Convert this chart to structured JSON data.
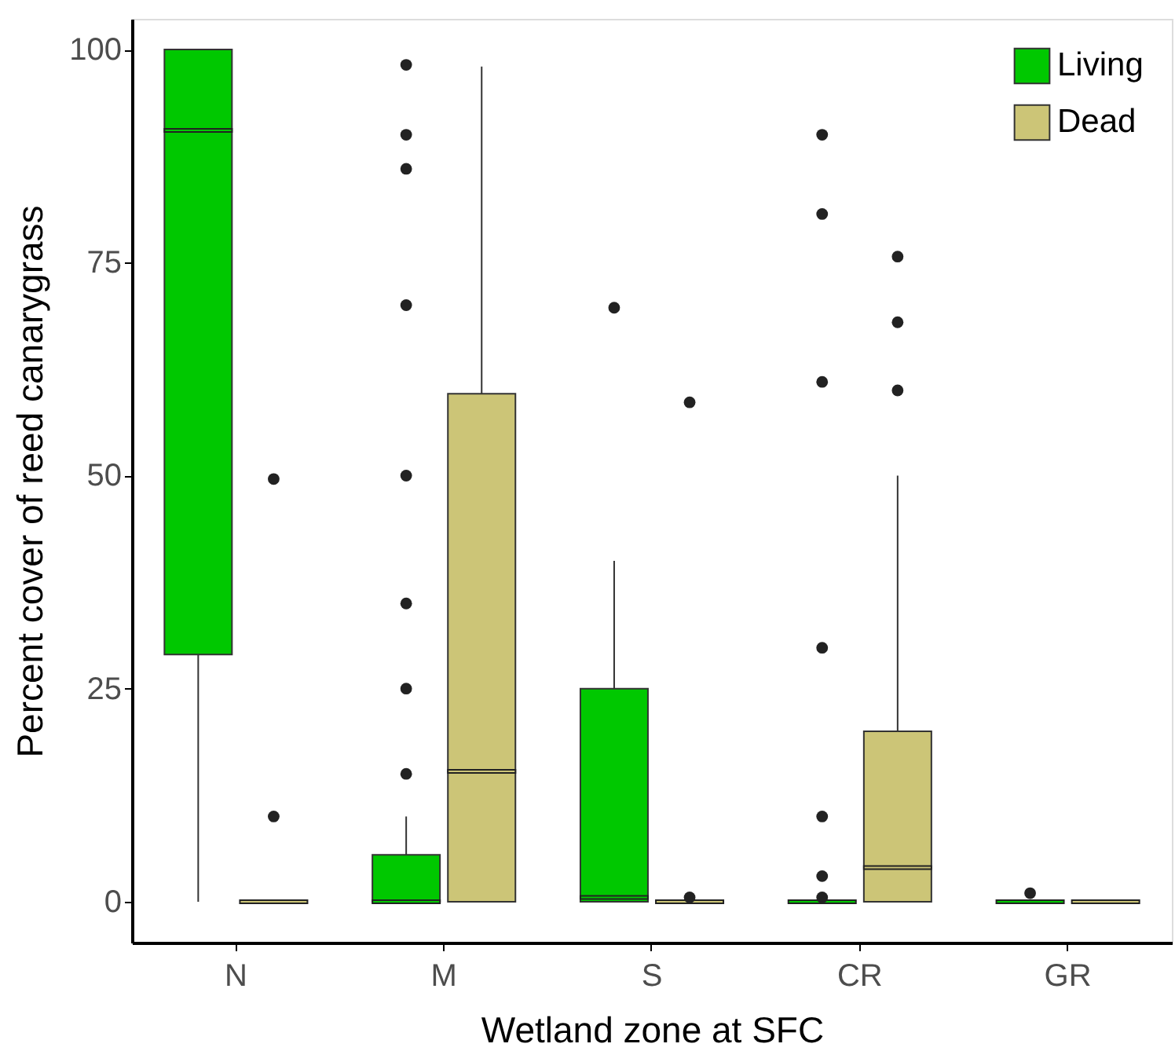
{
  "chart_data": {
    "type": "box",
    "xlabel": "Wetland zone at SFC",
    "ylabel": "Percent cover of reed canarygrass",
    "categories": [
      "N",
      "M",
      "S",
      "CR",
      "GR"
    ],
    "ylim": [
      -4.8,
      103.6
    ],
    "yticks": [
      0,
      25,
      50,
      75,
      100
    ],
    "grid": false,
    "legend": "top right",
    "series": [
      {
        "name": "Living",
        "color": "#00c800",
        "boxes": [
          {
            "low": 0,
            "q1": 29,
            "median": 90.5,
            "q3": 100,
            "high": 100
          },
          {
            "low": 0,
            "q1": 0,
            "median": 0,
            "q3": 5.5,
            "high": 10,
            "outliers": [
              98.2,
              90,
              86,
              70,
              50,
              35,
              25,
              15
            ]
          },
          {
            "low": 0,
            "q1": 0,
            "median": 0.5,
            "q3": 25,
            "high": 40,
            "outliers": [
              69.7
            ]
          },
          {
            "low": 0,
            "q1": 0,
            "median": 0,
            "q3": 0,
            "high": 0,
            "outliers": [
              90,
              80.7,
              61,
              29.8,
              10,
              3,
              0.5
            ]
          },
          {
            "low": 0,
            "q1": 0,
            "median": 0,
            "q3": 0,
            "high": 0,
            "outliers": [
              1
            ]
          }
        ]
      },
      {
        "name": "Dead",
        "color": "#ccc577",
        "boxes": [
          {
            "low": 0,
            "q1": 0,
            "median": 0,
            "q3": 0,
            "high": 0,
            "outliers": [
              49.6,
              10
            ]
          },
          {
            "low": 0,
            "q1": 0,
            "median": 15.3,
            "q3": 59.6,
            "high": 98
          },
          {
            "low": 0,
            "q1": 0,
            "median": 0,
            "q3": 0,
            "high": 0,
            "outliers": [
              58.6,
              0.5
            ]
          },
          {
            "low": 0,
            "q1": 0,
            "median": 4,
            "q3": 20,
            "high": 50,
            "outliers": [
              75.7,
              68,
              60
            ]
          },
          {
            "low": 0,
            "q1": 0,
            "median": 0,
            "q3": 0,
            "high": 0
          }
        ]
      }
    ]
  }
}
